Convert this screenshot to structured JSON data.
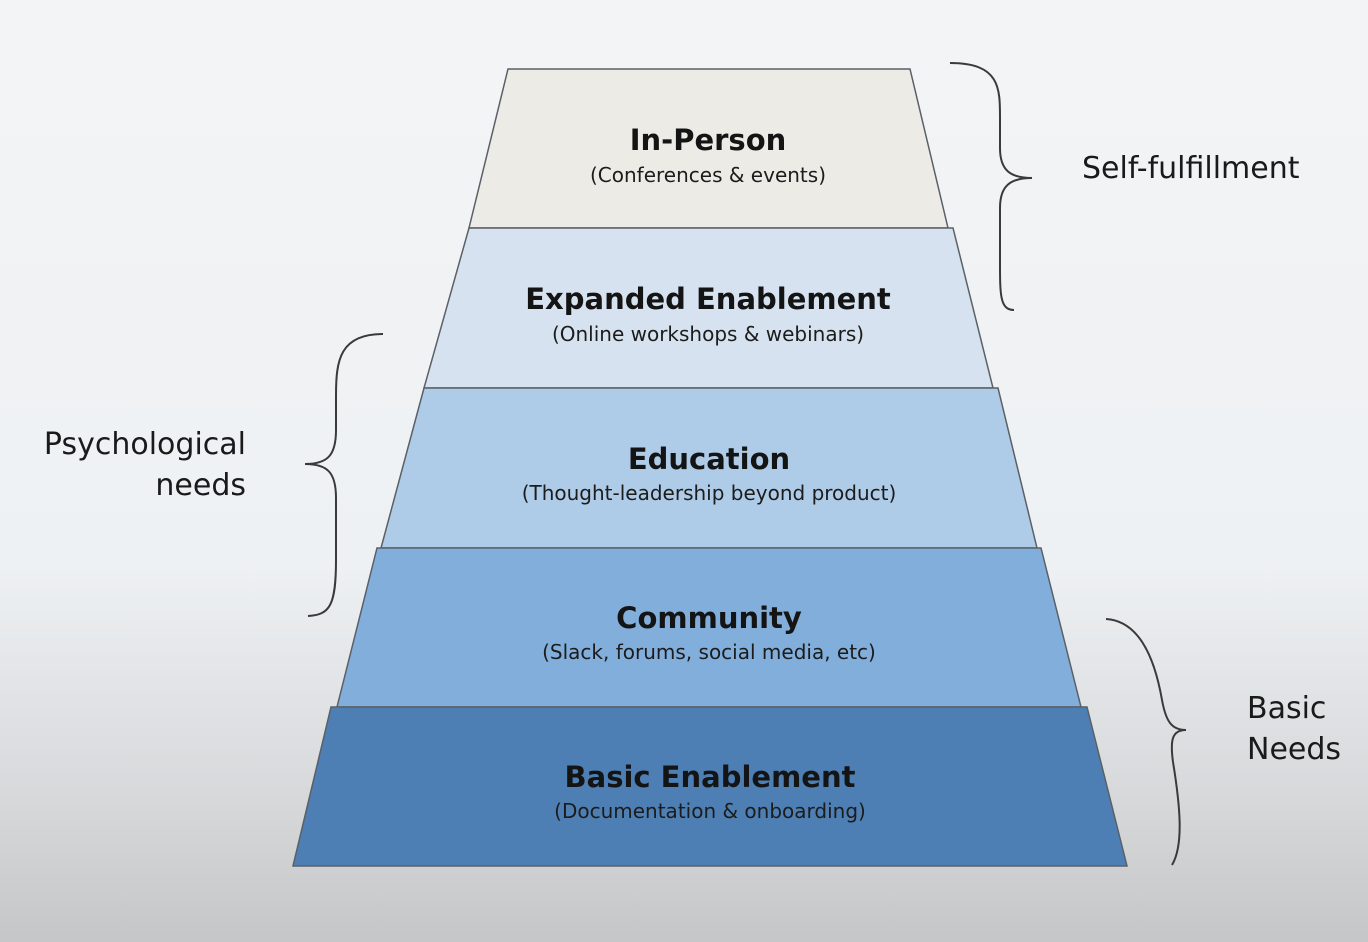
{
  "tiers": [
    {
      "title": "In-Person",
      "subtitle": "(Conferences & events)",
      "fill": "#ecebe6"
    },
    {
      "title": "Expanded Enablement",
      "subtitle": "(Online workshops & webinars)",
      "fill": "#d6e2ef"
    },
    {
      "title": "Education",
      "subtitle": "(Thought-leadership beyond product)",
      "fill": "#aecbe7"
    },
    {
      "title": "Community",
      "subtitle": "(Slack, forums, social media, etc)",
      "fill": "#82aedb"
    },
    {
      "title": "Basic Enablement",
      "subtitle": "(Documentation & onboarding)",
      "fill": "#4d7fb4"
    }
  ],
  "groups": {
    "self_fulfillment": {
      "label": "Self-fulfillment"
    },
    "psychological": {
      "line1": "Psychological",
      "line2": "needs"
    },
    "basic": {
      "line1": "Basic",
      "line2": "Needs"
    }
  }
}
